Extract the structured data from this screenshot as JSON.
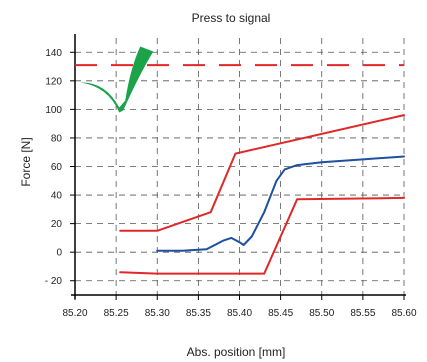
{
  "chart_data": {
    "type": "line",
    "title": "Press to signal",
    "xlabel": "Abs. position [mm]",
    "ylabel": "Force [N]",
    "xlim": [
      85.2,
      85.6
    ],
    "ylim": [
      -30,
      150
    ],
    "x_ticks": [
      85.2,
      85.25,
      85.3,
      85.35,
      85.4,
      85.45,
      85.5,
      85.55,
      85.6
    ],
    "x_tick_labels": [
      "85.20",
      "85.25",
      "85.30",
      "85.35",
      "85.40",
      "85.45",
      "85.50",
      "85.55",
      "85.60"
    ],
    "y_ticks": [
      -20,
      0,
      20,
      40,
      60,
      80,
      100,
      120,
      140
    ],
    "y_tick_labels": [
      "- 20",
      "0",
      "20",
      "40",
      "60",
      "80",
      "100",
      "120",
      "140"
    ],
    "grid": true,
    "grid_style": "dashed",
    "series": [
      {
        "color": "#1f4fa0",
        "values": [
          [
            85.3,
            1
          ],
          [
            85.33,
            1
          ],
          [
            85.36,
            2
          ],
          [
            85.38,
            8
          ],
          [
            85.39,
            10
          ],
          [
            85.4,
            7
          ],
          [
            85.405,
            5
          ],
          [
            85.415,
            11
          ],
          [
            85.43,
            28
          ],
          [
            85.445,
            50
          ],
          [
            85.455,
            58
          ],
          [
            85.47,
            61
          ],
          [
            85.5,
            63
          ],
          [
            85.55,
            65
          ],
          [
            85.6,
            67
          ]
        ]
      },
      {
        "color": "#e02828",
        "values": [
          [
            85.255,
            15
          ],
          [
            85.3,
            15
          ],
          [
            85.365,
            28
          ],
          [
            85.395,
            69
          ],
          [
            85.6,
            96
          ]
        ]
      },
      {
        "color": "#e02828",
        "values": [
          [
            85.255,
            -14
          ],
          [
            85.3,
            -15
          ],
          [
            85.43,
            -15
          ],
          [
            85.47,
            37
          ],
          [
            85.6,
            38
          ]
        ]
      },
      {
        "color": "#e02828",
        "style": "dashed",
        "values": [
          [
            85.2,
            131
          ],
          [
            85.6,
            131
          ]
        ]
      }
    ],
    "annotations": [
      {
        "type": "checkmark",
        "color": "#1ba34a",
        "x": 85.255,
        "y": 102
      }
    ]
  }
}
